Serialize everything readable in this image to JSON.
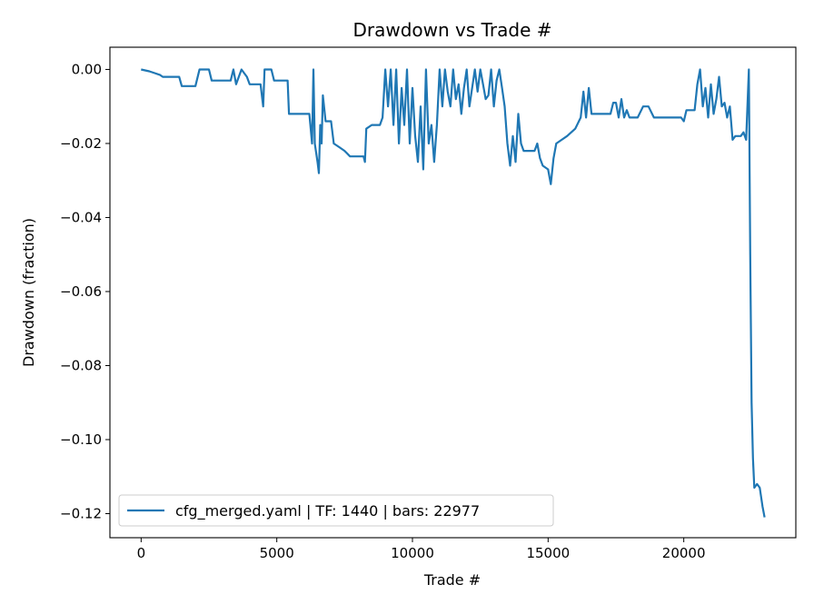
{
  "chart_data": {
    "type": "line",
    "title": "Drawdown vs Trade #",
    "xlabel": "Trade #",
    "ylabel": "Drawdown (fraction)",
    "xlim": [
      -1150,
      24130
    ],
    "ylim": [
      -0.1265,
      0.006
    ],
    "xticks": [
      0,
      5000,
      10000,
      15000,
      20000
    ],
    "xtick_labels": [
      "0",
      "5000",
      "10000",
      "15000",
      "20000"
    ],
    "yticks": [
      0,
      -0.02,
      -0.04,
      -0.06,
      -0.08,
      -0.1,
      -0.12
    ],
    "ytick_labels": [
      "0.00",
      "−0.02",
      "−0.04",
      "−0.06",
      "−0.08",
      "−0.10",
      "−0.12"
    ],
    "grid": false,
    "legend_position": "lower-left",
    "series": [
      {
        "name": "cfg_merged.yaml | TF: 1440 | bars: 22977",
        "color": "#1f77b4",
        "x": [
          0,
          300,
          500,
          700,
          800,
          1000,
          1400,
          1500,
          1700,
          2000,
          2150,
          2500,
          2600,
          3000,
          3300,
          3400,
          3500,
          3700,
          3900,
          4000,
          4200,
          4400,
          4500,
          4550,
          4800,
          4900,
          5000,
          5400,
          5450,
          6000,
          6200,
          6300,
          6350,
          6400,
          6500,
          6550,
          6600,
          6650,
          6700,
          6800,
          7000,
          7100,
          7300,
          7500,
          7700,
          8200,
          8250,
          8300,
          8500,
          8800,
          8900,
          9000,
          9100,
          9200,
          9300,
          9400,
          9500,
          9600,
          9700,
          9800,
          9900,
          10000,
          10100,
          10200,
          10300,
          10400,
          10500,
          10600,
          10700,
          10800,
          10900,
          11000,
          11100,
          11200,
          11300,
          11400,
          11500,
          11600,
          11700,
          11800,
          11900,
          12000,
          12100,
          12200,
          12300,
          12400,
          12500,
          12600,
          12700,
          12800,
          12900,
          13000,
          13100,
          13200,
          13300,
          13400,
          13500,
          13600,
          13700,
          13800,
          13900,
          14000,
          14100,
          14300,
          14500,
          14600,
          14700,
          14800,
          15000,
          15100,
          15200,
          15300,
          15500,
          15700,
          16000,
          16200,
          16300,
          16400,
          16500,
          16600,
          17000,
          17300,
          17400,
          17500,
          17600,
          17700,
          17800,
          17900,
          18000,
          18300,
          18500,
          18700,
          18900,
          19500,
          19900,
          20000,
          20100,
          20300,
          20400,
          20500,
          20600,
          20700,
          20800,
          20900,
          21000,
          21100,
          21200,
          21300,
          21400,
          21500,
          21600,
          21700,
          21800,
          21900,
          22100,
          22200,
          22300,
          22400,
          22450,
          22500,
          22550,
          22600,
          22700,
          22800,
          22900,
          22977
        ],
        "y": [
          0,
          -0.0005,
          -0.001,
          -0.0015,
          -0.002,
          -0.002,
          -0.002,
          -0.0045,
          -0.0045,
          -0.0045,
          0,
          0,
          -0.003,
          -0.003,
          -0.003,
          0,
          -0.004,
          0,
          -0.002,
          -0.004,
          -0.004,
          -0.004,
          -0.01,
          0,
          0,
          -0.003,
          -0.003,
          -0.003,
          -0.012,
          -0.012,
          -0.012,
          -0.02,
          0,
          -0.02,
          -0.025,
          -0.028,
          -0.015,
          -0.02,
          -0.007,
          -0.014,
          -0.014,
          -0.02,
          -0.021,
          -0.022,
          -0.0235,
          -0.0235,
          -0.025,
          -0.016,
          -0.015,
          -0.015,
          -0.013,
          0,
          -0.01,
          0,
          -0.015,
          0,
          -0.02,
          -0.005,
          -0.015,
          0,
          -0.02,
          -0.005,
          -0.018,
          -0.025,
          -0.01,
          -0.027,
          0,
          -0.02,
          -0.015,
          -0.025,
          -0.015,
          0,
          -0.01,
          0,
          -0.006,
          -0.01,
          0,
          -0.008,
          -0.004,
          -0.012,
          -0.005,
          0,
          -0.01,
          -0.005,
          0,
          -0.006,
          0,
          -0.004,
          -0.008,
          -0.007,
          0,
          -0.01,
          -0.003,
          0,
          -0.005,
          -0.01,
          -0.02,
          -0.026,
          -0.018,
          -0.025,
          -0.012,
          -0.02,
          -0.022,
          -0.022,
          -0.022,
          -0.02,
          -0.024,
          -0.026,
          -0.027,
          -0.031,
          -0.024,
          -0.02,
          -0.019,
          -0.018,
          -0.016,
          -0.013,
          -0.006,
          -0.013,
          -0.005,
          -0.012,
          -0.012,
          -0.012,
          -0.009,
          -0.009,
          -0.013,
          -0.008,
          -0.013,
          -0.011,
          -0.013,
          -0.013,
          -0.01,
          -0.01,
          -0.013,
          -0.013,
          -0.013,
          -0.014,
          -0.011,
          -0.011,
          -0.011,
          -0.004,
          0,
          -0.01,
          -0.005,
          -0.013,
          -0.004,
          -0.012,
          -0.008,
          -0.002,
          -0.01,
          -0.009,
          -0.013,
          -0.01,
          -0.019,
          -0.018,
          -0.018,
          -0.017,
          -0.019,
          0,
          -0.05,
          -0.09,
          -0.105,
          -0.113,
          -0.112,
          -0.113,
          -0.118,
          -0.121
        ]
      }
    ]
  }
}
